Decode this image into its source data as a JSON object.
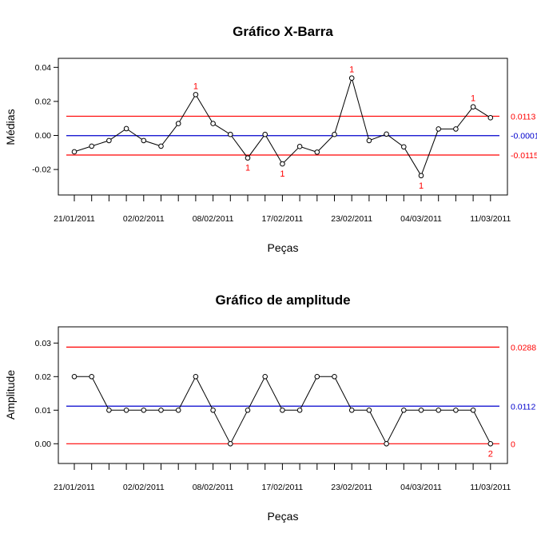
{
  "colors": {
    "limit": "#ff0000",
    "center": "#0000cd",
    "series": "#000000",
    "flag": "#ff0000"
  },
  "chart_data": [
    {
      "type": "line",
      "title": "Gráfico X-Barra",
      "xlabel": "Peças",
      "ylabel": "Médias",
      "ylim": [
        -0.034,
        0.046
      ],
      "yticks": [
        "-0.02",
        "0.00",
        "0.02",
        "0.04"
      ],
      "ytick_values": [
        -0.02,
        0.0,
        0.02,
        0.04
      ],
      "x_tick_labels": [
        {
          "index": 0,
          "label": "21/01/2011"
        },
        {
          "index": 4,
          "label": "02/02/2011"
        },
        {
          "index": 8,
          "label": "08/02/2011"
        },
        {
          "index": 12,
          "label": "17/02/2011"
        },
        {
          "index": 16,
          "label": "23/02/2011"
        },
        {
          "index": 20,
          "label": "04/03/2011"
        },
        {
          "index": 24,
          "label": "11/03/2011"
        }
      ],
      "n_points": 25,
      "values": [
        -0.0096,
        -0.0063,
        -0.003,
        0.004,
        -0.003,
        -0.0063,
        0.007,
        0.024,
        0.007,
        0.0006,
        -0.0132,
        0.0006,
        -0.0167,
        -0.0065,
        -0.0098,
        0.0006,
        0.0337,
        -0.003,
        0.0008,
        -0.0067,
        -0.0236,
        0.0038,
        0.0038,
        0.0168,
        0.0104
      ],
      "control_limits": {
        "ucl": 0.0113,
        "center": -0.0001,
        "lcl": -0.0115,
        "ucl_label": "0.0113",
        "center_label": "-0.0001",
        "lcl_label": "-0.0115"
      },
      "flags": [
        {
          "index": 7,
          "label": "1",
          "position": "above"
        },
        {
          "index": 10,
          "label": "1",
          "position": "below"
        },
        {
          "index": 12,
          "label": "1",
          "position": "below"
        },
        {
          "index": 16,
          "label": "1",
          "position": "above"
        },
        {
          "index": 20,
          "label": "1",
          "position": "below"
        },
        {
          "index": 23,
          "label": "1",
          "position": "above"
        }
      ],
      "grid": false
    },
    {
      "type": "line",
      "title": "Gráfico de amplitude",
      "xlabel": "Peças",
      "ylabel": "Amplitude",
      "ylim": [
        -0.006,
        0.035
      ],
      "yticks": [
        "0.00",
        "0.01",
        "0.02",
        "0.03"
      ],
      "ytick_values": [
        0.0,
        0.01,
        0.02,
        0.03
      ],
      "x_tick_labels": [
        {
          "index": 0,
          "label": "21/01/2011"
        },
        {
          "index": 4,
          "label": "02/02/2011"
        },
        {
          "index": 8,
          "label": "08/02/2011"
        },
        {
          "index": 12,
          "label": "17/02/2011"
        },
        {
          "index": 16,
          "label": "23/02/2011"
        },
        {
          "index": 20,
          "label": "04/03/2011"
        },
        {
          "index": 24,
          "label": "11/03/2011"
        }
      ],
      "n_points": 25,
      "values": [
        0.02,
        0.02,
        0.01,
        0.01,
        0.01,
        0.01,
        0.01,
        0.02,
        0.01,
        0.0,
        0.01,
        0.02,
        0.01,
        0.01,
        0.02,
        0.02,
        0.01,
        0.01,
        0.0,
        0.01,
        0.01,
        0.01,
        0.01,
        0.01,
        0.0
      ],
      "control_limits": {
        "ucl": 0.0288,
        "center": 0.0112,
        "lcl": 0.0,
        "ucl_label": "0.0288",
        "center_label": "0.0112",
        "lcl_label": "0"
      },
      "flags": [
        {
          "index": 24,
          "label": "2",
          "position": "below"
        }
      ],
      "grid": false
    }
  ]
}
